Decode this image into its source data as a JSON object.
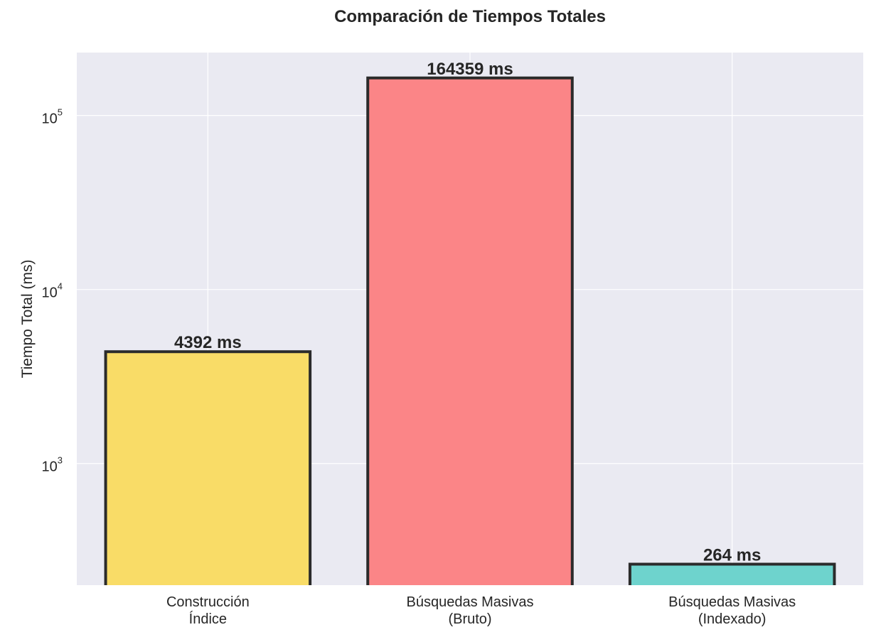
{
  "chart_data": {
    "type": "bar",
    "title": "Comparación de Tiempos Totales",
    "xlabel": "",
    "ylabel": "Tiempo Total (ms)",
    "yscale": "log",
    "ylim": [
      200,
      230000
    ],
    "grid": true,
    "categories": [
      [
        "Construcción",
        "Índice"
      ],
      [
        "Búsquedas Masivas",
        "(Bruto)"
      ],
      [
        "Búsquedas Masivas",
        "(Indexado)"
      ]
    ],
    "values": [
      4392,
      164359,
      264
    ],
    "data_labels": [
      "4392 ms",
      "164359 ms",
      "264 ms"
    ],
    "colors": [
      "#f9dc67",
      "#fb8587",
      "#6ed3cd"
    ],
    "edge_color": "#2b2b2b",
    "background": "#eaeaf2",
    "ytick_values": [
      1000,
      10000,
      100000
    ],
    "ytick_labels": [
      {
        "base": "10",
        "exp": "3"
      },
      {
        "base": "10",
        "exp": "4"
      },
      {
        "base": "10",
        "exp": "5"
      }
    ]
  }
}
